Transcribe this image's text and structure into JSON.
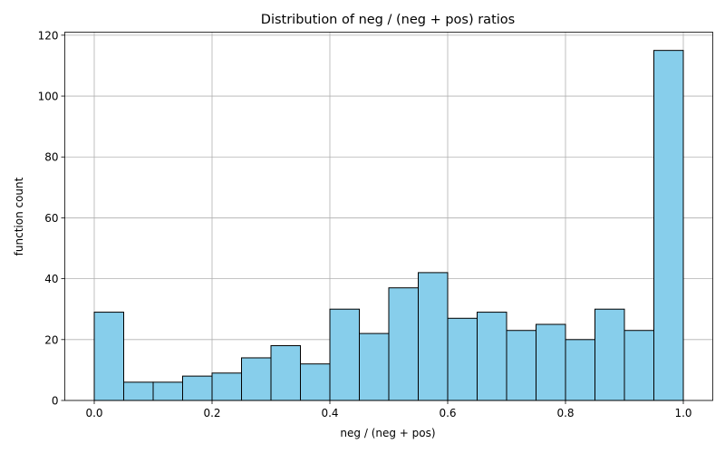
{
  "chart_data": {
    "type": "bar",
    "title": "Distribution of neg / (neg + pos) ratios",
    "xlabel": "neg / (neg + pos)",
    "ylabel": "function count",
    "xlim": [
      -0.05,
      1.05
    ],
    "ylim": [
      0,
      121
    ],
    "x_ticks": [
      "0.0",
      "0.2",
      "0.4",
      "0.6",
      "0.8",
      "1.0"
    ],
    "y_ticks": [
      "0",
      "20",
      "40",
      "60",
      "80",
      "100",
      "120"
    ],
    "grid": true,
    "bin_width": 0.05,
    "bin_starts": [
      0.0,
      0.05,
      0.1,
      0.15,
      0.2,
      0.25,
      0.3,
      0.35,
      0.4,
      0.45,
      0.5,
      0.55,
      0.6,
      0.65,
      0.7,
      0.75,
      0.8,
      0.85,
      0.9,
      0.95
    ],
    "values": [
      29,
      6,
      6,
      8,
      9,
      14,
      18,
      12,
      30,
      22,
      37,
      42,
      27,
      29,
      23,
      25,
      20,
      30,
      23,
      115
    ],
    "bar_color": "#87ceeb",
    "edge_color": "#000000",
    "grid_color": "#b0b0b0"
  }
}
